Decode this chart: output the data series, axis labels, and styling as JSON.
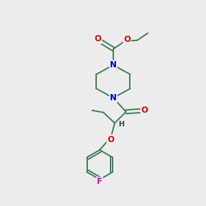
{
  "bg_color": "#ececec",
  "bond_color": "#3a7a5a",
  "atom_colors": {
    "O": "#dd0000",
    "N": "#0000cc",
    "F": "#cc00cc",
    "H": "#444444"
  },
  "figsize": [
    3.0,
    3.0
  ],
  "dpi": 100,
  "lw": 1.4,
  "fs": 8.5
}
